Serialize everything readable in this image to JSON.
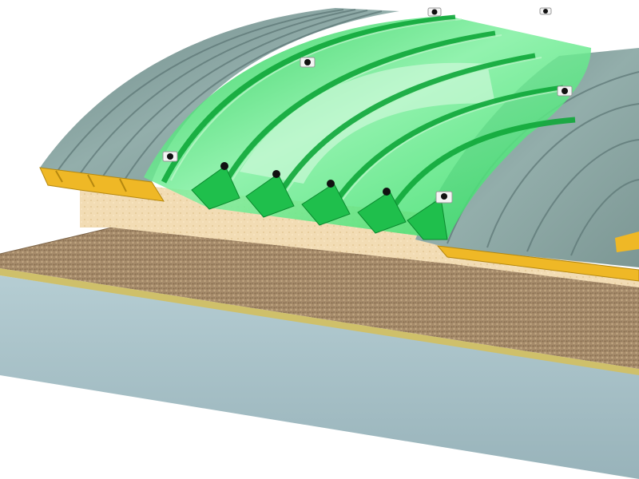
{
  "diagram": {
    "components": [
      {
        "id": "metal-roof-panel",
        "colour": "#7f9c9a"
      },
      {
        "id": "translucent-skylight-panel",
        "colour": "#36e06a"
      },
      {
        "id": "insulation-core",
        "colour": "#f0d9b0"
      },
      {
        "id": "panel-edge-foam",
        "colour": "#efb826"
      },
      {
        "id": "gravel-ballast-layer",
        "colour": "#a58a6a"
      },
      {
        "id": "concrete-base-slab",
        "colour": "#a9c2c8"
      },
      {
        "id": "fixing-clip",
        "colour": "#f4f4f4"
      }
    ]
  }
}
